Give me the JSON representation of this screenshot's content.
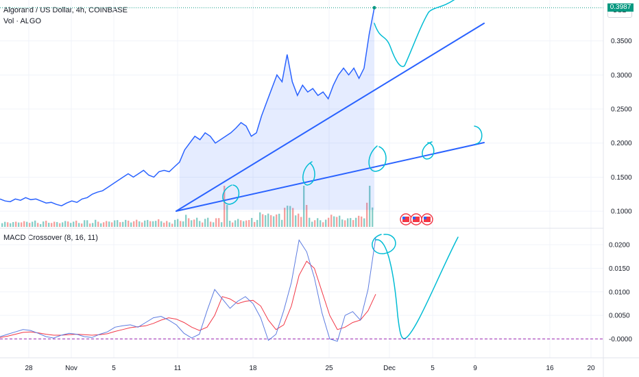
{
  "header": {
    "title": "Algorand / US Dollar, 4h, COINBASE",
    "volume_label": "Vol · ALGO",
    "currency_button": "USD",
    "last_price_badge": "0.3987"
  },
  "macd_panel": {
    "title": "MACD Crossover (8, 16, 11)"
  },
  "colors": {
    "price_line": "#2962ff",
    "drawing": "#00bcd4",
    "macd_line": "#5b7be0",
    "signal_line": "#f23645",
    "volume_up": "#26a69a",
    "volume_down": "#ef5350",
    "badge": "#089981",
    "zero_line": "#9c27b0"
  },
  "chart_data": [
    {
      "type": "line",
      "x_ticks": [
        "28",
        "Nov",
        "5",
        "11",
        "18",
        "25",
        "Dec",
        "5",
        "9",
        "16",
        "20"
      ],
      "y_ticks": [
        "0.3500",
        "0.3000",
        "0.2500",
        "0.2000",
        "0.1500",
        "0.1000"
      ],
      "ylim": [
        0.075,
        0.41
      ],
      "series": [
        {
          "values": [
            0.118,
            0.115,
            0.114,
            0.118,
            0.116,
            0.12,
            0.117,
            0.118,
            0.115,
            0.112,
            0.113,
            0.11,
            0.108,
            0.112,
            0.115,
            0.113,
            0.118,
            0.12,
            0.125,
            0.128,
            0.13,
            0.135,
            0.14,
            0.145,
            0.15,
            0.155,
            0.15,
            0.155,
            0.16,
            0.153,
            0.15,
            0.158,
            0.16,
            0.158,
            0.165,
            0.172,
            0.19,
            0.2,
            0.21,
            0.205,
            0.215,
            0.21,
            0.2,
            0.205,
            0.21,
            0.215,
            0.222,
            0.23,
            0.225,
            0.21,
            0.215,
            0.24,
            0.26,
            0.28,
            0.3,
            0.29,
            0.33,
            0.29,
            0.27,
            0.285,
            0.275,
            0.28,
            0.27,
            0.275,
            0.265,
            0.285,
            0.3,
            0.31,
            0.3,
            0.31,
            0.295,
            0.31,
            0.36,
            0.3987
          ]
        }
      ],
      "last_price": 0.3987
    },
    {
      "type": "line",
      "title": "MACD Crossover (8, 16, 11)",
      "y_ticks": [
        "0.0200",
        "0.0150",
        "0.0100",
        "0.0050",
        "-0.0000"
      ],
      "ylim": [
        -0.004,
        0.0235
      ],
      "series": [
        {
          "values": [
            0.0005,
            0.001,
            0.0015,
            0.002,
            0.0018,
            0.0012,
            0.0005,
            0.0002,
            0.0008,
            0.0012,
            0.001,
            0.0005,
            0.0003,
            0.001,
            0.0015,
            0.0025,
            0.0028,
            0.003,
            0.0025,
            0.0035,
            0.0045,
            0.0048,
            0.004,
            0.003,
            0.0012,
            0.0002,
            0.001,
            0.006,
            0.0105,
            0.0085,
            0.0065,
            0.008,
            0.009,
            0.0075,
            0.0045,
            -0.0003,
            0.001,
            0.006,
            0.012,
            0.021,
            0.0185,
            0.013,
            0.0055,
            0.0,
            -0.0005,
            0.005,
            0.0058,
            0.004,
            0.0105,
            0.0215
          ]
        },
        {
          "values": [
            0.0003,
            0.0006,
            0.001,
            0.0014,
            0.0015,
            0.0013,
            0.001,
            0.0008,
            0.0008,
            0.0009,
            0.001,
            0.0009,
            0.0008,
            0.0009,
            0.0011,
            0.0016,
            0.002,
            0.0024,
            0.0026,
            0.0028,
            0.0033,
            0.004,
            0.0045,
            0.0042,
            0.0035,
            0.0025,
            0.0018,
            0.0025,
            0.005,
            0.009,
            0.0085,
            0.0075,
            0.008,
            0.0082,
            0.007,
            0.004,
            0.002,
            0.003,
            0.007,
            0.0135,
            0.0165,
            0.015,
            0.01,
            0.005,
            0.002,
            0.0025,
            0.0035,
            0.004,
            0.006,
            0.0095
          ]
        }
      ]
    }
  ]
}
